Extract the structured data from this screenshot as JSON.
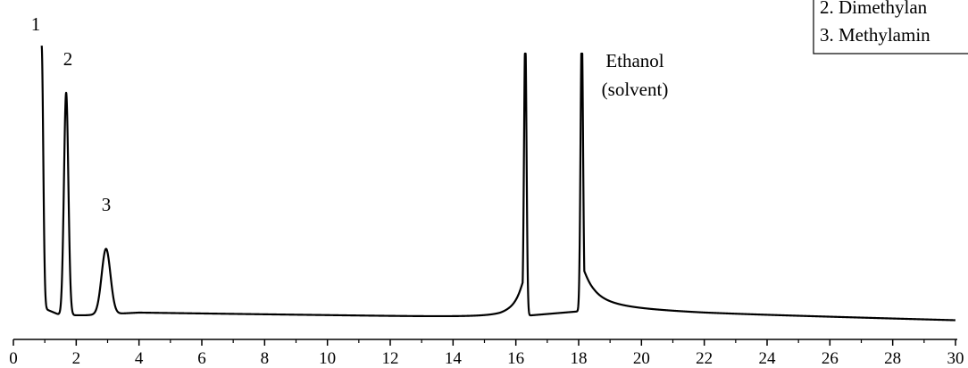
{
  "chart_data": {
    "type": "line",
    "title": "",
    "xlabel": "",
    "ylabel": "",
    "xlim": [
      0,
      30
    ],
    "x_ticks": [
      "0",
      "2",
      "4",
      "6",
      "8",
      "10",
      "12",
      "14",
      "16",
      "18",
      "20",
      "22",
      "24",
      "26",
      "28",
      "30"
    ],
    "grid": false,
    "legend_position": "top-right",
    "legend_items": [
      "2. Dimethylan",
      "3. Methylamin"
    ],
    "peak_labels": [
      {
        "text": "1",
        "x": 0.9
      },
      {
        "text": "2",
        "x": 1.7
      },
      {
        "text": "3",
        "x": 2.95
      },
      {
        "text": "Ethanol",
        "x": 19.6
      },
      {
        "text": "(solvent)",
        "x": 19.6
      }
    ],
    "series": [
      {
        "baseline": [
          [
            0.9,
            0.03
          ],
          [
            1.5,
            0.0
          ],
          [
            2.3,
            0.0
          ],
          [
            4,
            0.01
          ],
          [
            10,
            0.0
          ],
          [
            15.5,
            -0.01
          ],
          [
            18.5,
            0.02
          ],
          [
            22,
            0.005
          ],
          [
            30,
            -0.02
          ]
        ],
        "peaks": [
          {
            "x": 0.9,
            "height": 1.0,
            "width": 0.05
          },
          {
            "x": 1.68,
            "height": 0.85,
            "width": 0.07
          },
          {
            "x": 2.95,
            "height": 0.25,
            "width": 0.14
          },
          {
            "x": 16.3,
            "height": 1.07,
            "width": 0.04,
            "tail": 0.25,
            "side": "front"
          },
          {
            "x": 18.1,
            "height": 1.07,
            "width": 0.04,
            "tail": 0.35,
            "side": "back"
          }
        ]
      }
    ]
  }
}
